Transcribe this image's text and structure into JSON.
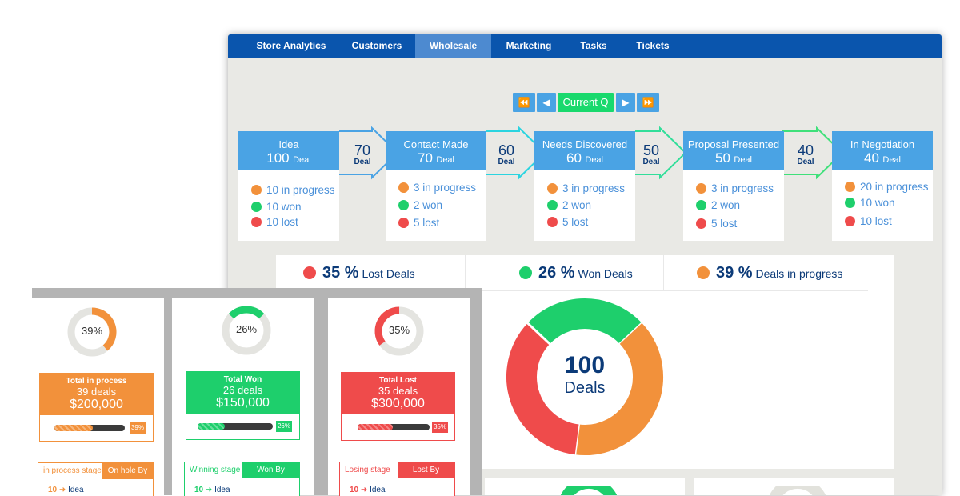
{
  "tabs": [
    "Store Analytics",
    "Customers",
    "Wholesale",
    "Marketing",
    "Tasks",
    "Tickets"
  ],
  "active_tab": "Wholesale",
  "quarter": {
    "label": "Current Q",
    "first": "⏪",
    "prev": "◀",
    "next": "▶",
    "last": "⏩"
  },
  "stages": [
    {
      "name": "Idea",
      "count": "100",
      "unit": "Deal",
      "in_progress": "10 in progress",
      "won": "10 won",
      "lost": "10 lost"
    },
    {
      "name": "Contact Made",
      "count": "70",
      "unit": "Deal",
      "in_progress": "3 in progress",
      "won": "2 won",
      "lost": "5 lost"
    },
    {
      "name": "Needs Discovered",
      "count": "60",
      "unit": "Deal",
      "in_progress": "3 in progress",
      "won": "2 won",
      "lost": "5 lost"
    },
    {
      "name": "Proposal Presented",
      "count": "50",
      "unit": "Deal",
      "in_progress": "3 in progress",
      "won": "2 won",
      "lost": "5 lost"
    },
    {
      "name": "In Negotiation",
      "count": "40",
      "unit": "Deal",
      "in_progress": "20 in progress",
      "won": "10 won",
      "lost": "10 lost"
    }
  ],
  "conversions": [
    {
      "value": "70",
      "label": "Deal"
    },
    {
      "value": "60",
      "label": "Deal"
    },
    {
      "value": "50",
      "label": "Deal"
    },
    {
      "value": "40",
      "label": "Deal"
    }
  ],
  "summary": [
    {
      "pct": "35 %",
      "label": "Lost Deals",
      "color": "#ef4b4b"
    },
    {
      "pct": "26 %",
      "label": "Won Deals",
      "color": "#1ecf6c"
    },
    {
      "pct": "39 %",
      "label": "Deals in progress",
      "color": "#f2913b"
    }
  ],
  "donut": {
    "center_value": "100",
    "center_label": "Deals",
    "segments": [
      {
        "label": "Won",
        "percent": 26,
        "color": "#1ecf6c"
      },
      {
        "label": "In progress",
        "percent": 39,
        "color": "#f2913b"
      },
      {
        "label": "Lost",
        "percent": 35,
        "color": "#ef4b4b"
      }
    ]
  },
  "mini_panels": [
    {
      "pct_label": "39%",
      "fraction": 0.39,
      "color": "#f2913b",
      "title": "Total in process",
      "deals": "39 deals",
      "amount": "$200,000",
      "tag": "39%",
      "stage_tab": "in process stage",
      "by_tab": "On hole By",
      "row_num": "10",
      "row_label": "Idea"
    },
    {
      "pct_label": "26%",
      "fraction": 0.26,
      "color": "#1ecf6c",
      "title": "Total Won",
      "deals": "26 deals",
      "amount": "$150,000",
      "tag": "26%",
      "stage_tab": "Winning stage",
      "by_tab": "Won By",
      "row_num": "10",
      "row_label": "Idea"
    },
    {
      "pct_label": "35%",
      "fraction": 0.35,
      "color": "#ef4b4b",
      "title": "Total Lost",
      "deals": "35 deals",
      "amount": "$300,000",
      "tag": "35%",
      "stage_tab": "Losing stage",
      "by_tab": "Lost By",
      "row_num": "10",
      "row_label": "Idea"
    }
  ]
}
